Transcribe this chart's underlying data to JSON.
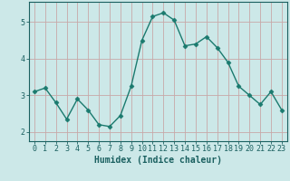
{
  "x": [
    0,
    1,
    2,
    3,
    4,
    5,
    6,
    7,
    8,
    9,
    10,
    11,
    12,
    13,
    14,
    15,
    16,
    17,
    18,
    19,
    20,
    21,
    22,
    23
  ],
  "y": [
    3.1,
    3.2,
    2.8,
    2.35,
    2.9,
    2.6,
    2.2,
    2.15,
    2.45,
    3.25,
    4.5,
    5.15,
    5.25,
    5.05,
    4.35,
    4.4,
    4.6,
    4.3,
    3.9,
    3.25,
    3.0,
    2.75,
    3.1,
    2.6
  ],
  "line_color": "#1a7a6e",
  "marker": "D",
  "marker_color": "#1a7a6e",
  "bg_color": "#cce8e8",
  "grid_color": "#c8a8a8",
  "axis_color": "#1a6060",
  "xlabel": "Humidex (Indice chaleur)",
  "xlim": [
    -0.5,
    23.5
  ],
  "ylim": [
    1.75,
    5.55
  ],
  "yticks": [
    2,
    3,
    4,
    5
  ],
  "xticks": [
    0,
    1,
    2,
    3,
    4,
    5,
    6,
    7,
    8,
    9,
    10,
    11,
    12,
    13,
    14,
    15,
    16,
    17,
    18,
    19,
    20,
    21,
    22,
    23
  ],
  "xlabel_fontsize": 7,
  "tick_fontsize": 6,
  "line_width": 1.0,
  "marker_size": 2.5
}
